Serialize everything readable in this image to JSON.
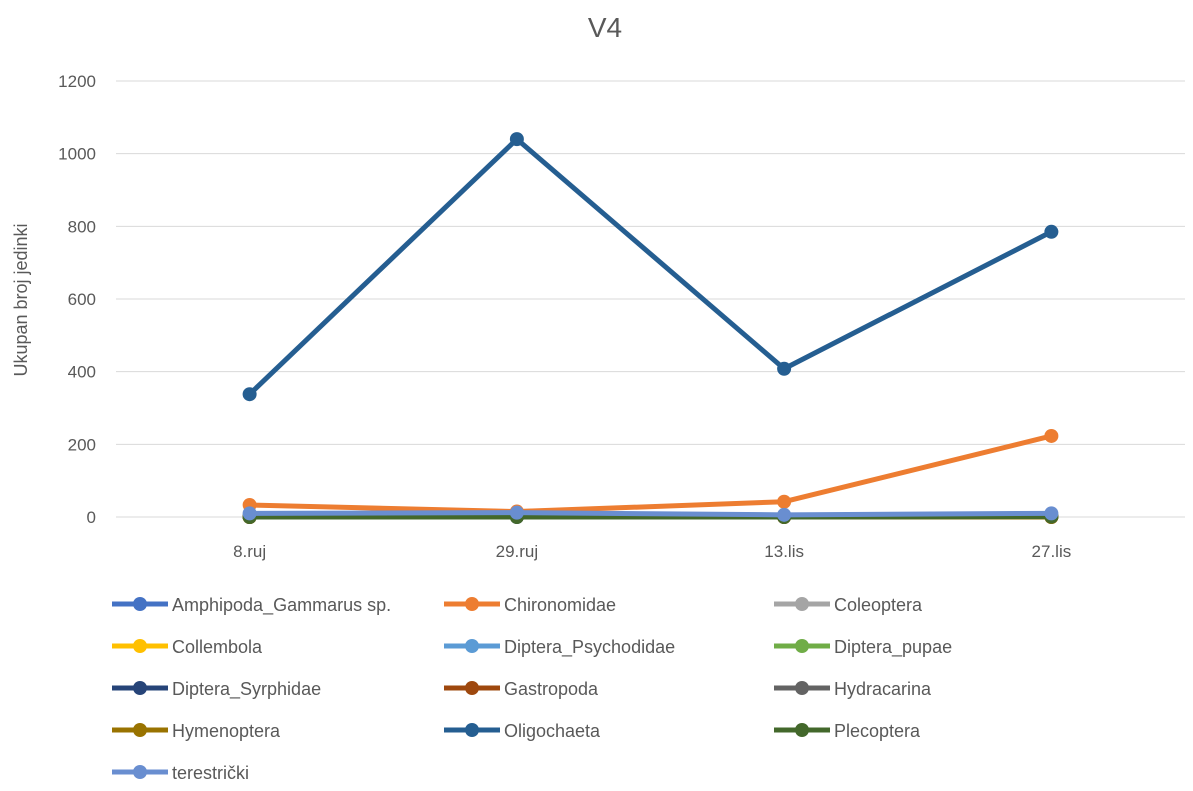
{
  "chart_data": {
    "type": "line",
    "title": "V4",
    "xlabel": "",
    "ylabel": "Ukupan broj jedinki",
    "ylim": [
      0,
      1200
    ],
    "yticks": [
      0,
      200,
      400,
      600,
      800,
      1000,
      1200
    ],
    "grid": true,
    "legend_position": "bottom",
    "categories": [
      "8.ruj",
      "29.ruj",
      "13.lis",
      "27.lis"
    ],
    "series": [
      {
        "name": "Amphipoda_Gammarus sp.",
        "color": "#4472C4",
        "values": [
          2,
          3,
          1,
          2
        ]
      },
      {
        "name": "Chironomidae",
        "color": "#ED7D31",
        "values": [
          33,
          15,
          42,
          223
        ]
      },
      {
        "name": "Coleoptera",
        "color": "#A5A5A5",
        "values": [
          1,
          1,
          0,
          1
        ]
      },
      {
        "name": "Collembola",
        "color": "#FFC000",
        "values": [
          0,
          1,
          0,
          1
        ]
      },
      {
        "name": "Diptera_Psychodidae",
        "color": "#5B9BD5",
        "values": [
          5,
          8,
          3,
          4
        ]
      },
      {
        "name": "Diptera_pupae",
        "color": "#70AD47",
        "values": [
          1,
          2,
          1,
          2
        ]
      },
      {
        "name": "Diptera_Syrphidae",
        "color": "#264478",
        "values": [
          0,
          0,
          0,
          1
        ]
      },
      {
        "name": "Gastropoda",
        "color": "#9E480E",
        "values": [
          0,
          1,
          0,
          0
        ]
      },
      {
        "name": "Hydracarina",
        "color": "#636363",
        "values": [
          1,
          1,
          1,
          1
        ]
      },
      {
        "name": "Hymenoptera",
        "color": "#997300",
        "values": [
          0,
          1,
          0,
          0
        ]
      },
      {
        "name": "Oligochaeta",
        "color": "#255E91",
        "values": [
          338,
          1040,
          408,
          785
        ]
      },
      {
        "name": "Plecoptera",
        "color": "#43682B",
        "values": [
          0,
          0,
          0,
          1
        ]
      },
      {
        "name": "terestrički",
        "color": "#698ED0",
        "values": [
          10,
          12,
          6,
          10
        ]
      }
    ]
  }
}
